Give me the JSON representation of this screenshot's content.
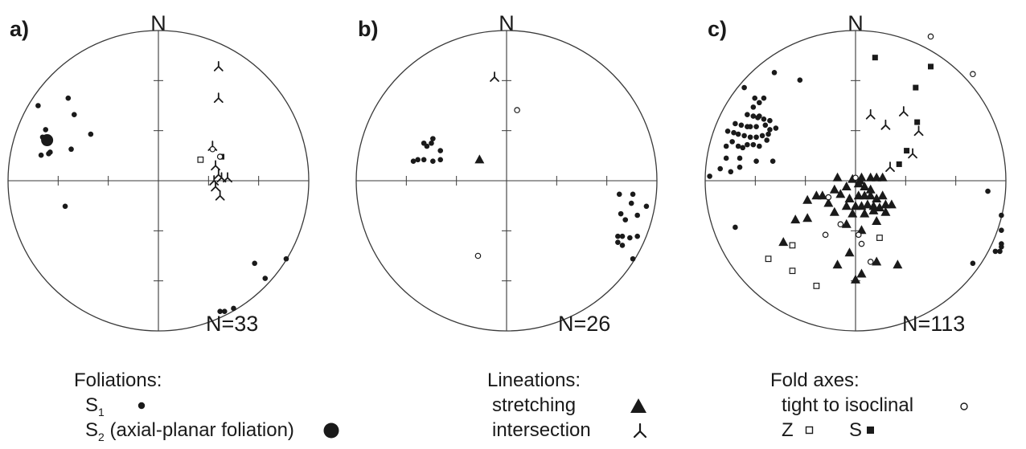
{
  "panels": [
    {
      "label": "a)",
      "north": "N",
      "n_label": "N=33",
      "points": {
        "s1": [
          [
            -0.6,
            0.55
          ],
          [
            -0.8,
            0.5
          ],
          [
            -0.56,
            0.44
          ],
          [
            -0.75,
            0.34
          ],
          [
            -0.77,
            0.29
          ],
          [
            -0.45,
            0.31
          ],
          [
            -0.58,
            0.21
          ],
          [
            -0.72,
            0.19
          ],
          [
            -0.73,
            0.18
          ],
          [
            -0.78,
            0.17
          ],
          [
            -0.62,
            -0.17
          ],
          [
            0.64,
            -0.55
          ],
          [
            0.85,
            -0.52
          ],
          [
            0.71,
            -0.65
          ],
          [
            0.5,
            -0.85
          ],
          [
            0.44,
            -0.87
          ],
          [
            0.41,
            -0.87
          ]
        ],
        "s2": [
          [
            -0.74,
            0.27
          ]
        ],
        "intersection": [
          [
            0.4,
            0.76
          ],
          [
            0.4,
            0.55
          ],
          [
            0.36,
            0.23
          ],
          [
            0.38,
            0.1
          ],
          [
            0.37,
            0.0
          ],
          [
            0.4,
            0.04
          ],
          [
            0.42,
            0.02
          ],
          [
            0.46,
            0.02
          ],
          [
            0.38,
            -0.04
          ],
          [
            0.41,
            -0.1
          ]
        ],
        "tight": [
          [
            0.36,
            0.21
          ],
          [
            0.41,
            0.16
          ]
        ],
        "z": [
          [
            0.28,
            0.14
          ]
        ],
        "s_fold": [
          [
            0.42,
            0.16
          ]
        ]
      }
    },
    {
      "label": "b)",
      "north": "N",
      "n_label": "N=26",
      "points": {
        "s1": [
          [
            -0.55,
            0.25
          ],
          [
            -0.5,
            0.25
          ],
          [
            -0.49,
            0.28
          ],
          [
            -0.44,
            0.2
          ],
          [
            -0.53,
            0.23
          ],
          [
            -0.59,
            0.14
          ],
          [
            -0.55,
            0.14
          ],
          [
            -0.44,
            0.14
          ],
          [
            -0.62,
            0.13
          ],
          [
            -0.49,
            0.13
          ],
          [
            0.75,
            -0.09
          ],
          [
            0.84,
            -0.09
          ],
          [
            0.83,
            -0.15
          ],
          [
            0.93,
            -0.17
          ],
          [
            0.76,
            -0.22
          ],
          [
            0.87,
            -0.23
          ],
          [
            0.79,
            -0.26
          ],
          [
            0.74,
            -0.37
          ],
          [
            0.77,
            -0.37
          ],
          [
            0.82,
            -0.38
          ],
          [
            0.87,
            -0.37
          ],
          [
            0.74,
            -0.41
          ],
          [
            0.77,
            -0.43
          ],
          [
            0.84,
            -0.52
          ]
        ],
        "stretching": [
          [
            -0.18,
            0.14
          ]
        ],
        "intersection": [
          [
            -0.08,
            0.69
          ]
        ],
        "tight": [
          [
            0.07,
            0.47
          ],
          [
            -0.19,
            -0.5
          ]
        ]
      }
    },
    {
      "label": "c)",
      "north": "N",
      "n_label": "N=113",
      "points": {
        "s1": [
          [
            -0.54,
            0.72
          ],
          [
            -0.37,
            0.67
          ],
          [
            -0.67,
            0.55
          ],
          [
            -0.74,
            0.62
          ],
          [
            -0.61,
            0.55
          ],
          [
            -0.68,
            0.49
          ],
          [
            -0.64,
            0.52
          ],
          [
            -0.72,
            0.44
          ],
          [
            -0.68,
            0.43
          ],
          [
            -0.65,
            0.42
          ],
          [
            -0.61,
            0.41
          ],
          [
            -0.57,
            0.4
          ],
          [
            -0.8,
            0.38
          ],
          [
            -0.76,
            0.37
          ],
          [
            -0.72,
            0.36
          ],
          [
            -0.7,
            0.36
          ],
          [
            -0.66,
            0.36
          ],
          [
            -0.6,
            0.37
          ],
          [
            -0.57,
            0.34
          ],
          [
            -0.53,
            0.35
          ],
          [
            -0.85,
            0.33
          ],
          [
            -0.81,
            0.32
          ],
          [
            -0.78,
            0.31
          ],
          [
            -0.74,
            0.3
          ],
          [
            -0.7,
            0.29
          ],
          [
            -0.66,
            0.29
          ],
          [
            -0.62,
            0.3
          ],
          [
            -0.59,
            0.27
          ],
          [
            -0.82,
            0.26
          ],
          [
            -0.78,
            0.23
          ],
          [
            -0.75,
            0.22
          ],
          [
            -0.72,
            0.24
          ],
          [
            -0.68,
            0.24
          ],
          [
            -0.64,
            0.23
          ],
          [
            -0.86,
            0.23
          ],
          [
            -0.86,
            0.15
          ],
          [
            -0.77,
            0.15
          ],
          [
            -0.66,
            0.13
          ],
          [
            -0.55,
            0.13
          ],
          [
            -0.58,
            0.31
          ],
          [
            -0.64,
            0.43
          ],
          [
            -0.9,
            0.08
          ],
          [
            -0.97,
            0.03
          ],
          [
            -0.83,
            0.06
          ],
          [
            -0.77,
            0.09
          ],
          [
            -0.8,
            -0.31
          ],
          [
            0.88,
            -0.07
          ],
          [
            0.97,
            -0.23
          ],
          [
            0.97,
            -0.33
          ],
          [
            0.97,
            -0.42
          ],
          [
            0.93,
            -0.47
          ],
          [
            0.97,
            -0.44
          ],
          [
            0.96,
            -0.47
          ],
          [
            0.78,
            -0.55
          ]
        ],
        "stretching": [
          [
            -0.14,
            -0.06
          ],
          [
            -0.06,
            -0.04
          ],
          [
            0.02,
            -0.02
          ],
          [
            0.06,
            -0.04
          ],
          [
            0.1,
            -0.06
          ],
          [
            -0.02,
            0.01
          ],
          [
            0.03,
            0.0
          ],
          [
            0.04,
            0.02
          ],
          [
            0.1,
            0.02
          ],
          [
            0.14,
            0.02
          ],
          [
            0.18,
            0.02
          ],
          [
            -0.12,
            0.02
          ],
          [
            -0.1,
            -0.09
          ],
          [
            -0.04,
            -0.12
          ],
          [
            0.02,
            -0.1
          ],
          [
            0.06,
            -0.1
          ],
          [
            0.1,
            -0.1
          ],
          [
            0.14,
            -0.12
          ],
          [
            0.18,
            -0.1
          ],
          [
            -0.18,
            -0.15
          ],
          [
            -0.22,
            -0.1
          ],
          [
            -0.26,
            -0.1
          ],
          [
            -0.06,
            -0.17
          ],
          [
            0.0,
            -0.17
          ],
          [
            0.04,
            -0.17
          ],
          [
            0.08,
            -0.16
          ],
          [
            0.12,
            -0.17
          ],
          [
            0.16,
            -0.18
          ],
          [
            0.2,
            -0.16
          ],
          [
            0.24,
            -0.16
          ],
          [
            -0.32,
            -0.13
          ],
          [
            -0.32,
            -0.25
          ],
          [
            -0.14,
            -0.21
          ],
          [
            -0.02,
            -0.22
          ],
          [
            0.06,
            -0.22
          ],
          [
            0.12,
            -0.2
          ],
          [
            -0.06,
            -0.29
          ],
          [
            0.04,
            -0.33
          ],
          [
            0.14,
            -0.27
          ],
          [
            0.2,
            -0.21
          ],
          [
            -0.4,
            -0.26
          ],
          [
            -0.48,
            -0.41
          ],
          [
            -0.04,
            -0.48
          ],
          [
            -0.12,
            -0.56
          ],
          [
            0.14,
            -0.54
          ],
          [
            0.28,
            -0.56
          ],
          [
            0.04,
            -0.62
          ],
          [
            0.0,
            -0.66
          ]
        ],
        "intersection": [
          [
            0.1,
            0.44
          ],
          [
            0.2,
            0.37
          ],
          [
            0.32,
            0.46
          ],
          [
            0.42,
            0.33
          ],
          [
            0.38,
            0.18
          ],
          [
            0.23,
            0.09
          ]
        ],
        "tight": [
          [
            0.5,
            0.96
          ],
          [
            0.78,
            0.71
          ],
          [
            0.0,
            0.02
          ],
          [
            -0.18,
            -0.11
          ],
          [
            -0.1,
            -0.29
          ],
          [
            -0.2,
            -0.36
          ],
          [
            0.04,
            -0.42
          ],
          [
            0.1,
            -0.54
          ],
          [
            0.02,
            -0.36
          ]
        ],
        "z": [
          [
            -0.58,
            -0.52
          ],
          [
            -0.42,
            -0.43
          ],
          [
            -0.42,
            -0.6
          ],
          [
            -0.26,
            -0.7
          ],
          [
            0.16,
            -0.38
          ]
        ],
        "s_fold": [
          [
            0.13,
            0.82
          ],
          [
            0.5,
            0.76
          ],
          [
            0.4,
            0.62
          ],
          [
            0.41,
            0.39
          ],
          [
            0.34,
            0.2
          ],
          [
            0.29,
            0.11
          ]
        ]
      }
    }
  ],
  "legend": {
    "foliations": {
      "title": "Foliations:",
      "s1_base": "S",
      "s1_sub": "1",
      "s2_base": "S",
      "s2_sub": "2",
      "s2_text": " (axial-planar foliation)"
    },
    "lineations": {
      "title": "Lineations:",
      "stretching": "stretching",
      "intersection": "intersection"
    },
    "fold_axes": {
      "title": "Fold axes:",
      "tight": "tight to isoclinal",
      "z": "Z",
      "s": "S"
    }
  },
  "colors": {
    "ink": "#1a1a1a",
    "circle": "#3a3a3a",
    "background": "#ffffff"
  }
}
